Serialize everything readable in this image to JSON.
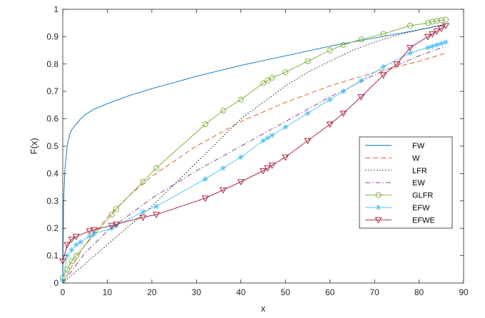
{
  "chart_data": {
    "type": "line",
    "xlabel": "x",
    "ylabel": "F(x)",
    "xlim": [
      0,
      90
    ],
    "ylim": [
      0,
      1
    ],
    "xticks": [
      "0",
      "10",
      "20",
      "30",
      "40",
      "50",
      "60",
      "70",
      "80",
      "90"
    ],
    "yticks": [
      "0",
      "0.1",
      "0.2",
      "0.3",
      "0.4",
      "0.5",
      "0.6",
      "0.7",
      "0.8",
      "0.9",
      "1"
    ],
    "grid": false,
    "legend_position": "right-middle",
    "series": [
      {
        "name": "FW",
        "color": "#0072bd",
        "dash": "solid",
        "marker": "none",
        "x": [
          0,
          0.2,
          0.5,
          1,
          1.5,
          2,
          3,
          4,
          5,
          7,
          10,
          15,
          20,
          30,
          40,
          50,
          60,
          70,
          80,
          86
        ],
        "y": [
          0,
          0.3,
          0.42,
          0.5,
          0.54,
          0.56,
          0.58,
          0.6,
          0.615,
          0.635,
          0.655,
          0.685,
          0.71,
          0.755,
          0.795,
          0.83,
          0.865,
          0.895,
          0.925,
          0.945
        ]
      },
      {
        "name": "W",
        "color": "#d95319",
        "dash": "dashed",
        "marker": "none",
        "x": [
          0,
          2,
          5,
          10,
          15,
          20,
          30,
          40,
          50,
          60,
          70,
          80,
          86
        ],
        "y": [
          0,
          0.06,
          0.14,
          0.24,
          0.32,
          0.39,
          0.5,
          0.59,
          0.66,
          0.72,
          0.77,
          0.81,
          0.84
        ]
      },
      {
        "name": "LFR",
        "color": "#000000",
        "dash": "dotted",
        "marker": "none",
        "x": [
          0,
          5,
          10,
          15,
          20,
          25,
          30,
          35,
          40,
          45,
          50,
          55,
          60,
          65,
          70,
          75,
          80,
          86
        ],
        "y": [
          0,
          0.07,
          0.14,
          0.21,
          0.28,
          0.36,
          0.44,
          0.52,
          0.6,
          0.66,
          0.72,
          0.77,
          0.81,
          0.85,
          0.88,
          0.905,
          0.925,
          0.945
        ]
      },
      {
        "name": "EW",
        "color": "#7e2f8e",
        "dash": "dashdot",
        "marker": "none",
        "x": [
          0,
          5,
          10,
          20,
          30,
          40,
          50,
          60,
          70,
          80,
          86
        ],
        "y": [
          0,
          0.11,
          0.19,
          0.31,
          0.41,
          0.5,
          0.59,
          0.68,
          0.76,
          0.83,
          0.865
        ]
      },
      {
        "name": "GLFR",
        "color": "#77ac30",
        "dash": "solid",
        "marker": "circle",
        "x": [
          0,
          1,
          2,
          3,
          11,
          12,
          18,
          21,
          32,
          36,
          40,
          45,
          46,
          47,
          50,
          55,
          60,
          63,
          67,
          72,
          78,
          82,
          83,
          84,
          85,
          86
        ],
        "y": [
          0.02,
          0.05,
          0.08,
          0.1,
          0.25,
          0.27,
          0.37,
          0.42,
          0.58,
          0.63,
          0.67,
          0.73,
          0.74,
          0.75,
          0.77,
          0.81,
          0.85,
          0.87,
          0.89,
          0.91,
          0.94,
          0.95,
          0.955,
          0.958,
          0.96,
          0.962
        ]
      },
      {
        "name": "EFW",
        "color": "#4dbeee",
        "dash": "solid",
        "marker": "star",
        "x": [
          0,
          1,
          2,
          3,
          4,
          6,
          7,
          11,
          12,
          18,
          21,
          32,
          36,
          40,
          45,
          46,
          47,
          50,
          55,
          60,
          63,
          67,
          72,
          78,
          82,
          83,
          84,
          85,
          86
        ],
        "y": [
          0.01,
          0.1,
          0.12,
          0.14,
          0.15,
          0.17,
          0.18,
          0.2,
          0.21,
          0.26,
          0.28,
          0.38,
          0.42,
          0.46,
          0.52,
          0.53,
          0.54,
          0.57,
          0.62,
          0.67,
          0.7,
          0.74,
          0.79,
          0.84,
          0.86,
          0.865,
          0.87,
          0.875,
          0.88
        ]
      },
      {
        "name": "EFWE",
        "color": "#a2142f",
        "dash": "solid",
        "marker": "triangle-down",
        "x": [
          0,
          1,
          2,
          3,
          6,
          7,
          11,
          12,
          18,
          21,
          32,
          36,
          40,
          45,
          46,
          47,
          50,
          55,
          60,
          63,
          67,
          72,
          75,
          78,
          82,
          83,
          84,
          85,
          86
        ],
        "y": [
          0.08,
          0.14,
          0.16,
          0.17,
          0.19,
          0.195,
          0.21,
          0.215,
          0.24,
          0.25,
          0.31,
          0.34,
          0.37,
          0.41,
          0.42,
          0.43,
          0.46,
          0.52,
          0.58,
          0.62,
          0.68,
          0.76,
          0.8,
          0.86,
          0.9,
          0.91,
          0.92,
          0.93,
          0.94
        ]
      }
    ]
  }
}
